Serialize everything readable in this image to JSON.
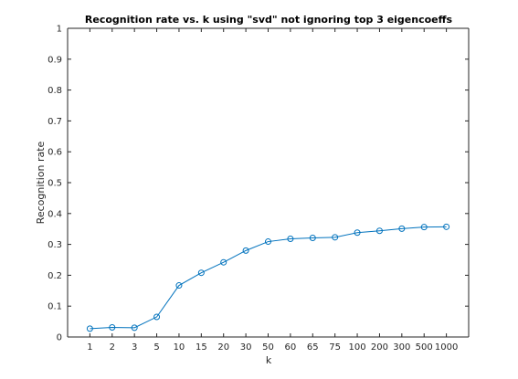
{
  "chart_data": {
    "type": "line",
    "title": "Recognition rate vs. k using \"svd\" not ignoring top 3 eigencoeffs",
    "xlabel": "k",
    "ylabel": "Recognition rate",
    "categories": [
      "1",
      "2",
      "3",
      "5",
      "10",
      "15",
      "20",
      "30",
      "50",
      "60",
      "65",
      "75",
      "100",
      "200",
      "300",
      "500",
      "1000"
    ],
    "series": [
      {
        "values": [
          0.027,
          0.031,
          0.03,
          0.065,
          0.167,
          0.208,
          0.242,
          0.28,
          0.309,
          0.318,
          0.321,
          0.323,
          0.338,
          0.344,
          0.351,
          0.356,
          0.357
        ],
        "color": "#0072bd",
        "marker": "circle"
      }
    ],
    "ylim": [
      0,
      1
    ],
    "yticks": [
      "0",
      "0.1",
      "0.2",
      "0.3",
      "0.4",
      "0.5",
      "0.6",
      "0.7",
      "0.8",
      "0.9",
      "1"
    ],
    "grid": false,
    "box": true
  }
}
